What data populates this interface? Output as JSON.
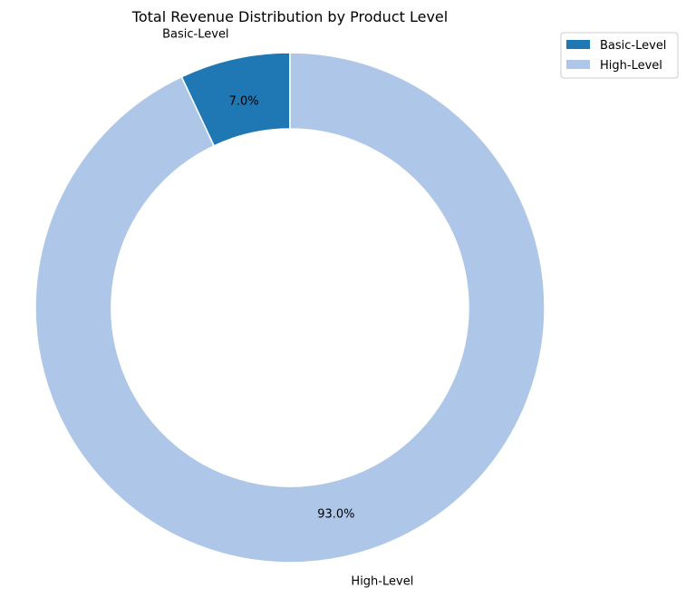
{
  "chart_data": {
    "type": "pie",
    "title": "Total Revenue Distribution by Product Level",
    "donut": true,
    "start_angle_deg": 90,
    "direction": "counterclockwise",
    "legend_position": "top-right",
    "slices": [
      {
        "label": "Basic-Level",
        "value": 7.0,
        "pct_text": "7.0%",
        "color": "#1f77b4"
      },
      {
        "label": "High-Level",
        "value": 93.0,
        "pct_text": "93.0%",
        "color": "#aec7e8"
      }
    ],
    "legend": [
      {
        "label": "Basic-Level",
        "color": "#1f77b4"
      },
      {
        "label": "High-Level",
        "color": "#aec7e8"
      }
    ]
  }
}
